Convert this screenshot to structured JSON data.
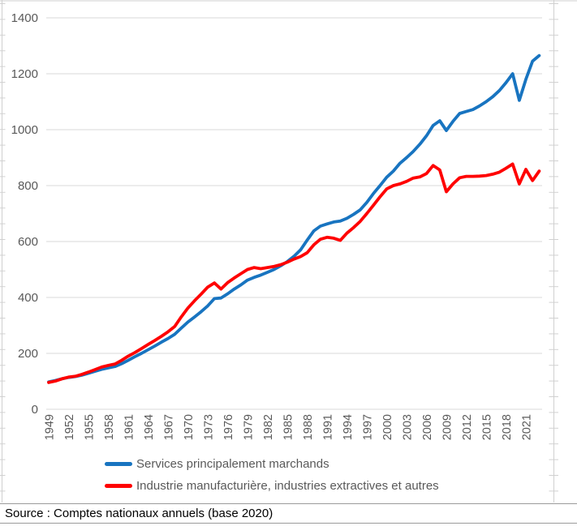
{
  "chart_data": {
    "type": "line",
    "title": "",
    "xlabel": "",
    "ylabel": "",
    "ylim": [
      0,
      1400
    ],
    "y_ticks": [
      0,
      200,
      400,
      600,
      800,
      1000,
      1200,
      1400
    ],
    "x_tick_labels": [
      "1949",
      "1952",
      "1955",
      "1958",
      "1961",
      "1964",
      "1967",
      "1970",
      "1973",
      "1976",
      "1979",
      "1982",
      "1985",
      "1988",
      "1991",
      "1994",
      "1997",
      "2000",
      "2003",
      "2006",
      "2009",
      "2012",
      "2015",
      "2018",
      "2021"
    ],
    "grid": "horizontal",
    "legend_position": "bottom",
    "x": [
      1949,
      1950,
      1951,
      1952,
      1953,
      1954,
      1955,
      1956,
      1957,
      1958,
      1959,
      1960,
      1961,
      1962,
      1963,
      1964,
      1965,
      1966,
      1967,
      1968,
      1969,
      1970,
      1971,
      1972,
      1973,
      1974,
      1975,
      1976,
      1977,
      1978,
      1979,
      1980,
      1981,
      1982,
      1983,
      1984,
      1985,
      1986,
      1987,
      1988,
      1989,
      1990,
      1991,
      1992,
      1993,
      1994,
      1995,
      1996,
      1997,
      1998,
      1999,
      2000,
      2001,
      2002,
      2003,
      2004,
      2005,
      2006,
      2007,
      2008,
      2009,
      2010,
      2011,
      2012,
      2013,
      2014,
      2015,
      2016,
      2017,
      2018,
      2019,
      2020,
      2021,
      2022,
      2023
    ],
    "series": [
      {
        "name": "Services principalement marchands",
        "color": "#1874C0",
        "values": [
          98,
          103,
          109,
          114,
          117,
          122,
          129,
          136,
          143,
          148,
          153,
          163,
          175,
          188,
          200,
          213,
          226,
          240,
          253,
          268,
          290,
          312,
          330,
          349,
          370,
          396,
          398,
          413,
          430,
          445,
          462,
          472,
          480,
          490,
          500,
          513,
          528,
          547,
          570,
          605,
          638,
          655,
          663,
          670,
          673,
          683,
          697,
          713,
          740,
          772,
          800,
          830,
          852,
          880,
          900,
          922,
          948,
          978,
          1015,
          1032,
          997,
          1030,
          1058,
          1065,
          1072,
          1085,
          1100,
          1118,
          1140,
          1168,
          1200,
          1105,
          1180,
          1245,
          1265
        ]
      },
      {
        "name": "Industrie manufacturière, industries extractives et autres",
        "color": "#FF0000",
        "values": [
          96,
          101,
          109,
          115,
          118,
          125,
          133,
          142,
          151,
          157,
          162,
          175,
          190,
          203,
          217,
          232,
          246,
          261,
          277,
          296,
          330,
          362,
          388,
          412,
          437,
          452,
          430,
          453,
          470,
          485,
          500,
          507,
          503,
          507,
          511,
          517,
          526,
          537,
          546,
          560,
          588,
          608,
          615,
          612,
          604,
          630,
          650,
          672,
          700,
          730,
          760,
          788,
          800,
          806,
          815,
          827,
          831,
          843,
          872,
          856,
          778,
          806,
          828,
          833,
          833,
          834,
          836,
          841,
          848,
          862,
          877,
          806,
          858,
          818,
          852
        ]
      }
    ],
    "colors": {
      "axis_text": "#595959",
      "gridline": "#D9D9D9",
      "sheet_line": "#D0D0D0"
    }
  },
  "source": {
    "text": "Source : Comptes nationaux annuels (base 2020)"
  }
}
